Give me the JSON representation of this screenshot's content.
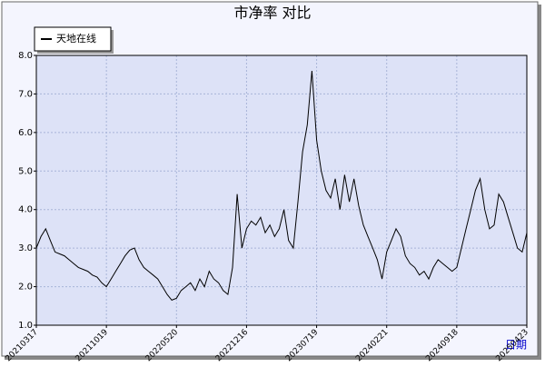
{
  "chart_data": {
    "type": "line",
    "title": "市净率  对比",
    "x_label": "日期",
    "categories": [
      "20210317",
      null,
      null,
      null,
      null,
      null,
      null,
      null,
      null,
      null,
      null,
      null,
      null,
      null,
      null,
      "20211019",
      null,
      null,
      null,
      null,
      null,
      null,
      null,
      null,
      null,
      null,
      null,
      null,
      null,
      null,
      "20220520",
      null,
      null,
      null,
      null,
      null,
      null,
      null,
      null,
      null,
      null,
      null,
      null,
      null,
      null,
      "20221216",
      null,
      null,
      null,
      null,
      null,
      null,
      null,
      null,
      null,
      null,
      null,
      null,
      null,
      null,
      "20230719",
      null,
      null,
      null,
      null,
      null,
      null,
      null,
      null,
      null,
      null,
      null,
      null,
      null,
      null,
      "20240221",
      null,
      null,
      null,
      null,
      null,
      null,
      null,
      null,
      null,
      null,
      null,
      null,
      null,
      null,
      "20240918",
      null,
      null,
      null,
      null,
      null,
      null,
      null,
      null,
      null,
      null,
      null,
      null,
      null,
      null,
      "20250423"
    ],
    "series": [
      {
        "name": "天地在线",
        "color": "#000000",
        "values": [
          3.0,
          3.3,
          3.5,
          3.2,
          2.9,
          2.85,
          2.8,
          2.7,
          2.6,
          2.5,
          2.45,
          2.4,
          2.3,
          2.25,
          2.1,
          2.0,
          2.2,
          2.4,
          2.6,
          2.8,
          2.95,
          3.0,
          2.7,
          2.5,
          2.4,
          2.3,
          2.2,
          2.0,
          1.8,
          1.65,
          1.7,
          1.9,
          2.0,
          2.1,
          1.9,
          2.2,
          2.0,
          2.4,
          2.2,
          2.1,
          1.9,
          1.8,
          2.5,
          4.4,
          3.0,
          3.5,
          3.7,
          3.6,
          3.8,
          3.4,
          3.6,
          3.3,
          3.5,
          4.0,
          3.2,
          3.0,
          4.2,
          5.5,
          6.2,
          7.6,
          5.8,
          5.0,
          4.5,
          4.3,
          4.8,
          4.0,
          4.9,
          4.2,
          4.8,
          4.1,
          3.6,
          3.3,
          3.0,
          2.7,
          2.2,
          2.9,
          3.2,
          3.5,
          3.3,
          2.8,
          2.6,
          2.5,
          2.3,
          2.4,
          2.2,
          2.5,
          2.7,
          2.6,
          2.5,
          2.4,
          2.5,
          3.0,
          3.5,
          4.0,
          4.5,
          4.8,
          4.0,
          3.5,
          3.6,
          4.4,
          4.2,
          3.8,
          3.4,
          3.0,
          2.9,
          3.4
        ]
      }
    ],
    "ylim": [
      1,
      8
    ],
    "yticks": [
      {
        "value": 1,
        "label": "1.0"
      },
      {
        "value": 2,
        "label": "2.0"
      },
      {
        "value": 3,
        "label": "3.0"
      },
      {
        "value": 4,
        "label": "4.0"
      },
      {
        "value": 5,
        "label": "5.0"
      },
      {
        "value": 6,
        "label": "6.0"
      },
      {
        "value": 7,
        "label": "7.0"
      },
      {
        "value": 8,
        "label": "8.0"
      }
    ],
    "grid": true
  }
}
